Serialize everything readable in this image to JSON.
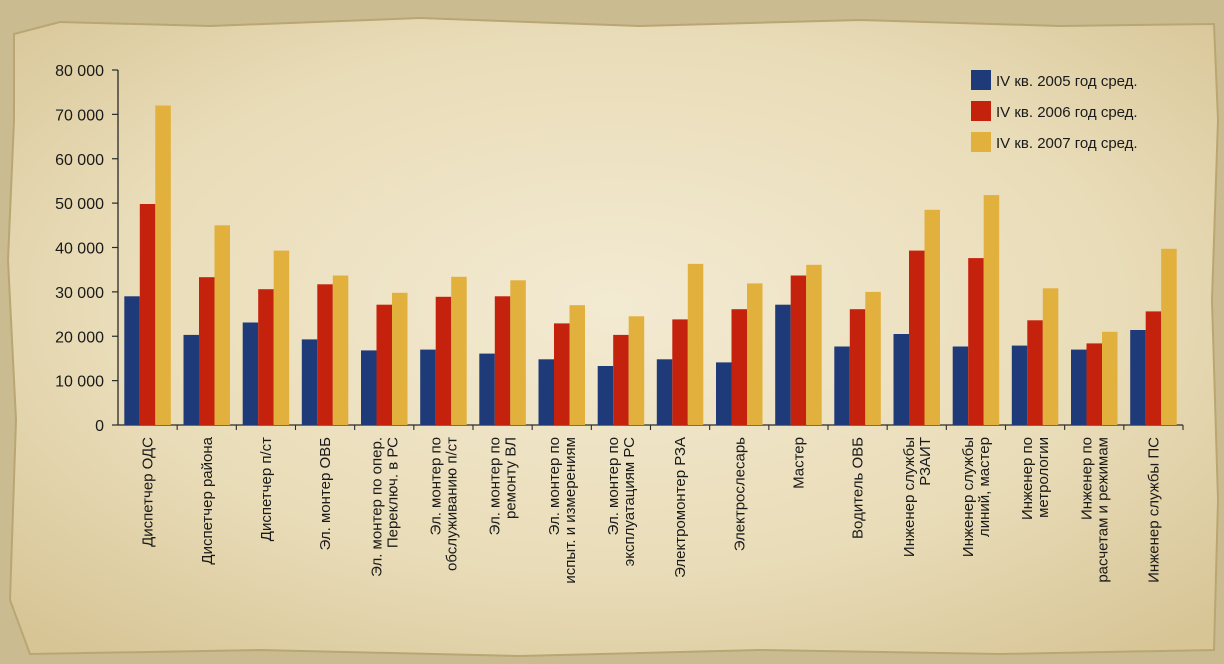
{
  "chart_data": {
    "type": "bar",
    "ylim": [
      0,
      80000
    ],
    "yticks": [
      0,
      10000,
      20000,
      30000,
      40000,
      50000,
      60000,
      70000,
      80000
    ],
    "ytick_labels": [
      "0",
      "10 000",
      "20 000",
      "30 000",
      "40 000",
      "50 000",
      "60 000",
      "70 000",
      "80 000"
    ],
    "grid": false,
    "legend_position": "top-right",
    "categories": [
      [
        "Диспетчер ОДС"
      ],
      [
        "Диспетчер района"
      ],
      [
        "Диспетчер п/ст"
      ],
      [
        "Эл. монтер ОВБ"
      ],
      [
        "Эл. монтер по опер.",
        "Переключ. в РС"
      ],
      [
        "Эл. монтер по",
        "обслуживанию п/ст"
      ],
      [
        "Эл. монтер по",
        "ремонту ВЛ"
      ],
      [
        "Эл. монтер по",
        "испыт. и измерениям"
      ],
      [
        "Эл. монтер по",
        "эксплуатациям РС"
      ],
      [
        "Электромонтер РЗА"
      ],
      [
        "Электрослесарь"
      ],
      [
        "Мастер"
      ],
      [
        "Водитель ОВБ"
      ],
      [
        "Инженер службы",
        "РЗАИТ"
      ],
      [
        "Инженер службы",
        "линий, мастер"
      ],
      [
        "Инженер по",
        "метрологии"
      ],
      [
        "Инженер по",
        "расчетам и режимам"
      ],
      [
        "Инженер службы ПС"
      ]
    ],
    "series": [
      {
        "name": "IV кв. 2005 год сред.",
        "color": "#1f3a78",
        "values": [
          29000,
          20300,
          23100,
          19300,
          16800,
          17000,
          16100,
          14800,
          13300,
          14800,
          14100,
          27100,
          17700,
          20500,
          17700,
          17900,
          17000,
          21400
        ]
      },
      {
        "name": "IV кв. 2006 год сред.",
        "color": "#c4220c",
        "values": [
          49800,
          33300,
          30600,
          31700,
          27100,
          28900,
          29000,
          22900,
          20300,
          23800,
          26100,
          33700,
          26100,
          39300,
          37600,
          23600,
          18400,
          25600
        ]
      },
      {
        "name": "IV кв. 2007 год сред.",
        "color": "#e2b03c",
        "values": [
          72000,
          45000,
          39300,
          33700,
          29800,
          33400,
          32600,
          27000,
          24500,
          36300,
          31900,
          36100,
          30000,
          48500,
          51800,
          30800,
          21000,
          39700
        ]
      }
    ]
  }
}
